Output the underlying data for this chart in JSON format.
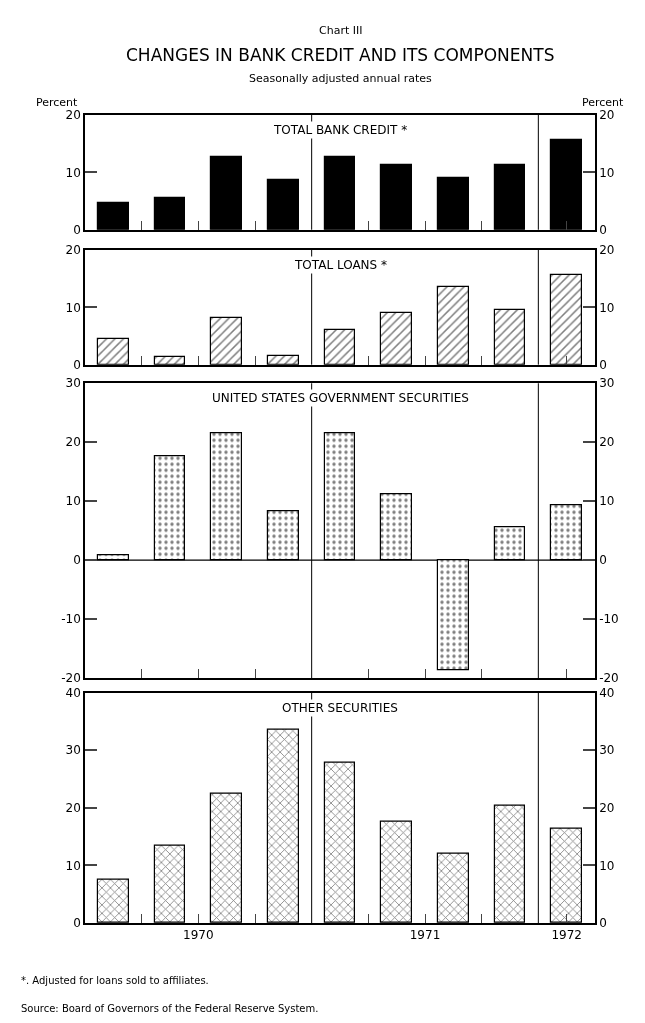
{
  "chart_data": [
    {
      "type": "bar",
      "title": "TOTAL BANK CREDIT *",
      "annotations": [
        "Chart III",
        "CHANGES IN BANK CREDIT AND ITS COMPONENTS",
        "Seasonally adjusted annual rates"
      ],
      "ylabel": "Percent",
      "y2label": "Percent",
      "x": [
        1970.125,
        1970.375,
        1970.625,
        1970.875,
        1971.125,
        1971.375,
        1971.625,
        1971.875,
        1972.125
      ],
      "xlim": [
        1970,
        1972.25
      ],
      "xticks": [
        {
          "value": 1970.25,
          "label": null
        },
        {
          "value": 1970.5,
          "label": null
        },
        {
          "value": 1970.75,
          "label": null
        },
        {
          "value": 1971.25,
          "label": null
        },
        {
          "value": 1971.5,
          "label": null
        },
        {
          "value": 1971.75,
          "label": null
        },
        {
          "value": 1972.125,
          "label": null
        }
      ],
      "series": [
        {
          "color": "#000000",
          "values": [
            4.7,
            5.5,
            12.7,
            8.7,
            12.6,
            11.3,
            9.0,
            11.3,
            15.6
          ]
        }
      ],
      "ylim": [
        0,
        20
      ],
      "yticks": [
        0,
        10,
        20
      ],
      "y2lim": [
        0,
        20
      ],
      "y2ticks": [
        0,
        10,
        20
      ],
      "ref_lines": [
        {
          "axis": "x",
          "value": 1971,
          "label": null
        },
        {
          "axis": "x",
          "value": 1972,
          "label": null
        }
      ],
      "tick_labels": "y",
      "grid": false
    },
    {
      "type": "bar",
      "title": "TOTAL LOANS *",
      "x": [
        1970.125,
        1970.375,
        1970.625,
        1970.875,
        1971.125,
        1971.375,
        1971.625,
        1971.875,
        1972.125
      ],
      "xlim": [
        1970,
        1972.25
      ],
      "xticks": [
        {
          "value": 1970.25,
          "label": null
        },
        {
          "value": 1970.5,
          "label": null
        },
        {
          "value": 1970.75,
          "label": null
        },
        {
          "value": 1971.25,
          "label": null
        },
        {
          "value": 1971.5,
          "label": null
        },
        {
          "value": 1971.75,
          "label": null
        },
        {
          "value": 1972.125,
          "label": null
        }
      ],
      "series": [
        {
          "color": "#000000",
          "values": [
            4.5,
            1.4,
            8.1,
            1.6,
            6.1,
            9.1,
            13.6,
            9.5,
            15.6
          ]
        }
      ],
      "ylim": [
        0,
        20
      ],
      "yticks": [
        0,
        10,
        20
      ],
      "y2lim": [
        0,
        20
      ],
      "y2ticks": [
        0,
        10,
        20
      ],
      "ref_lines": [
        {
          "axis": "x",
          "value": 1971,
          "label": null
        },
        {
          "axis": "x",
          "value": 1972,
          "label": null
        }
      ],
      "tick_labels": "y",
      "grid": false
    },
    {
      "type": "bar",
      "title": "UNITED STATES GOVERNMENT SECURITIES",
      "x": [
        1970.125,
        1970.375,
        1970.625,
        1970.875,
        1971.125,
        1971.375,
        1971.625,
        1971.875,
        1972.125
      ],
      "xlim": [
        1970,
        1972.25
      ],
      "xticks": [
        {
          "value": 1970.25,
          "label": null
        },
        {
          "value": 1970.5,
          "label": null
        },
        {
          "value": 1970.75,
          "label": null
        },
        {
          "value": 1971.25,
          "label": null
        },
        {
          "value": 1971.5,
          "label": null
        },
        {
          "value": 1971.75,
          "label": null
        },
        {
          "value": 1972.125,
          "label": null
        }
      ],
      "series": [
        {
          "color": "#000000",
          "values": [
            0.8,
            17.6,
            21.6,
            8.3,
            21.5,
            11.2,
            -18.6,
            5.6,
            9.4
          ]
        }
      ],
      "ylim": [
        -20,
        30
      ],
      "yticks": [
        -20,
        -10,
        0,
        10,
        20,
        30
      ],
      "y2lim": [
        -20,
        30
      ],
      "y2ticks": [
        -20,
        -10,
        0,
        10,
        20,
        30
      ],
      "ref_lines": [
        {
          "axis": "x",
          "value": 1971,
          "label": null
        },
        {
          "axis": "x",
          "value": 1972,
          "label": null
        },
        {
          "axis": "y",
          "value": 0,
          "label": null
        }
      ],
      "tick_labels": "y",
      "grid": false
    },
    {
      "type": "bar",
      "title": "OTHER SECURITIES",
      "annotations": [
        "*. Adjusted for loans sold to affiliates.",
        "Source: Board of Governors of the Federal Reserve System."
      ],
      "x": [
        1970.125,
        1970.375,
        1970.625,
        1970.875,
        1971.125,
        1971.375,
        1971.625,
        1971.875,
        1972.125
      ],
      "xlim": [
        1970,
        1972.25
      ],
      "xticks": [
        {
          "value": 1970.25,
          "label": null
        },
        {
          "value": 1970.5,
          "label": "1970"
        },
        {
          "value": 1970.75,
          "label": null
        },
        {
          "value": 1971.25,
          "label": null
        },
        {
          "value": 1971.5,
          "label": "1971"
        },
        {
          "value": 1971.75,
          "label": null
        },
        {
          "value": 1972.125,
          "label": "1972"
        }
      ],
      "series": [
        {
          "color": "#000000",
          "values": [
            7.6,
            13.5,
            22.4,
            33.6,
            27.8,
            17.6,
            12.1,
            20.4,
            16.4
          ]
        }
      ],
      "ylim": [
        0,
        40
      ],
      "yticks": [
        0,
        10,
        20,
        30,
        40
      ],
      "y2lim": [
        0,
        40
      ],
      "y2ticks": [
        0,
        10,
        20,
        30,
        40
      ],
      "ref_lines": [
        {
          "axis": "x",
          "value": 1971,
          "label": null
        },
        {
          "axis": "x",
          "value": 1972,
          "label": null
        }
      ],
      "grid": false
    }
  ]
}
